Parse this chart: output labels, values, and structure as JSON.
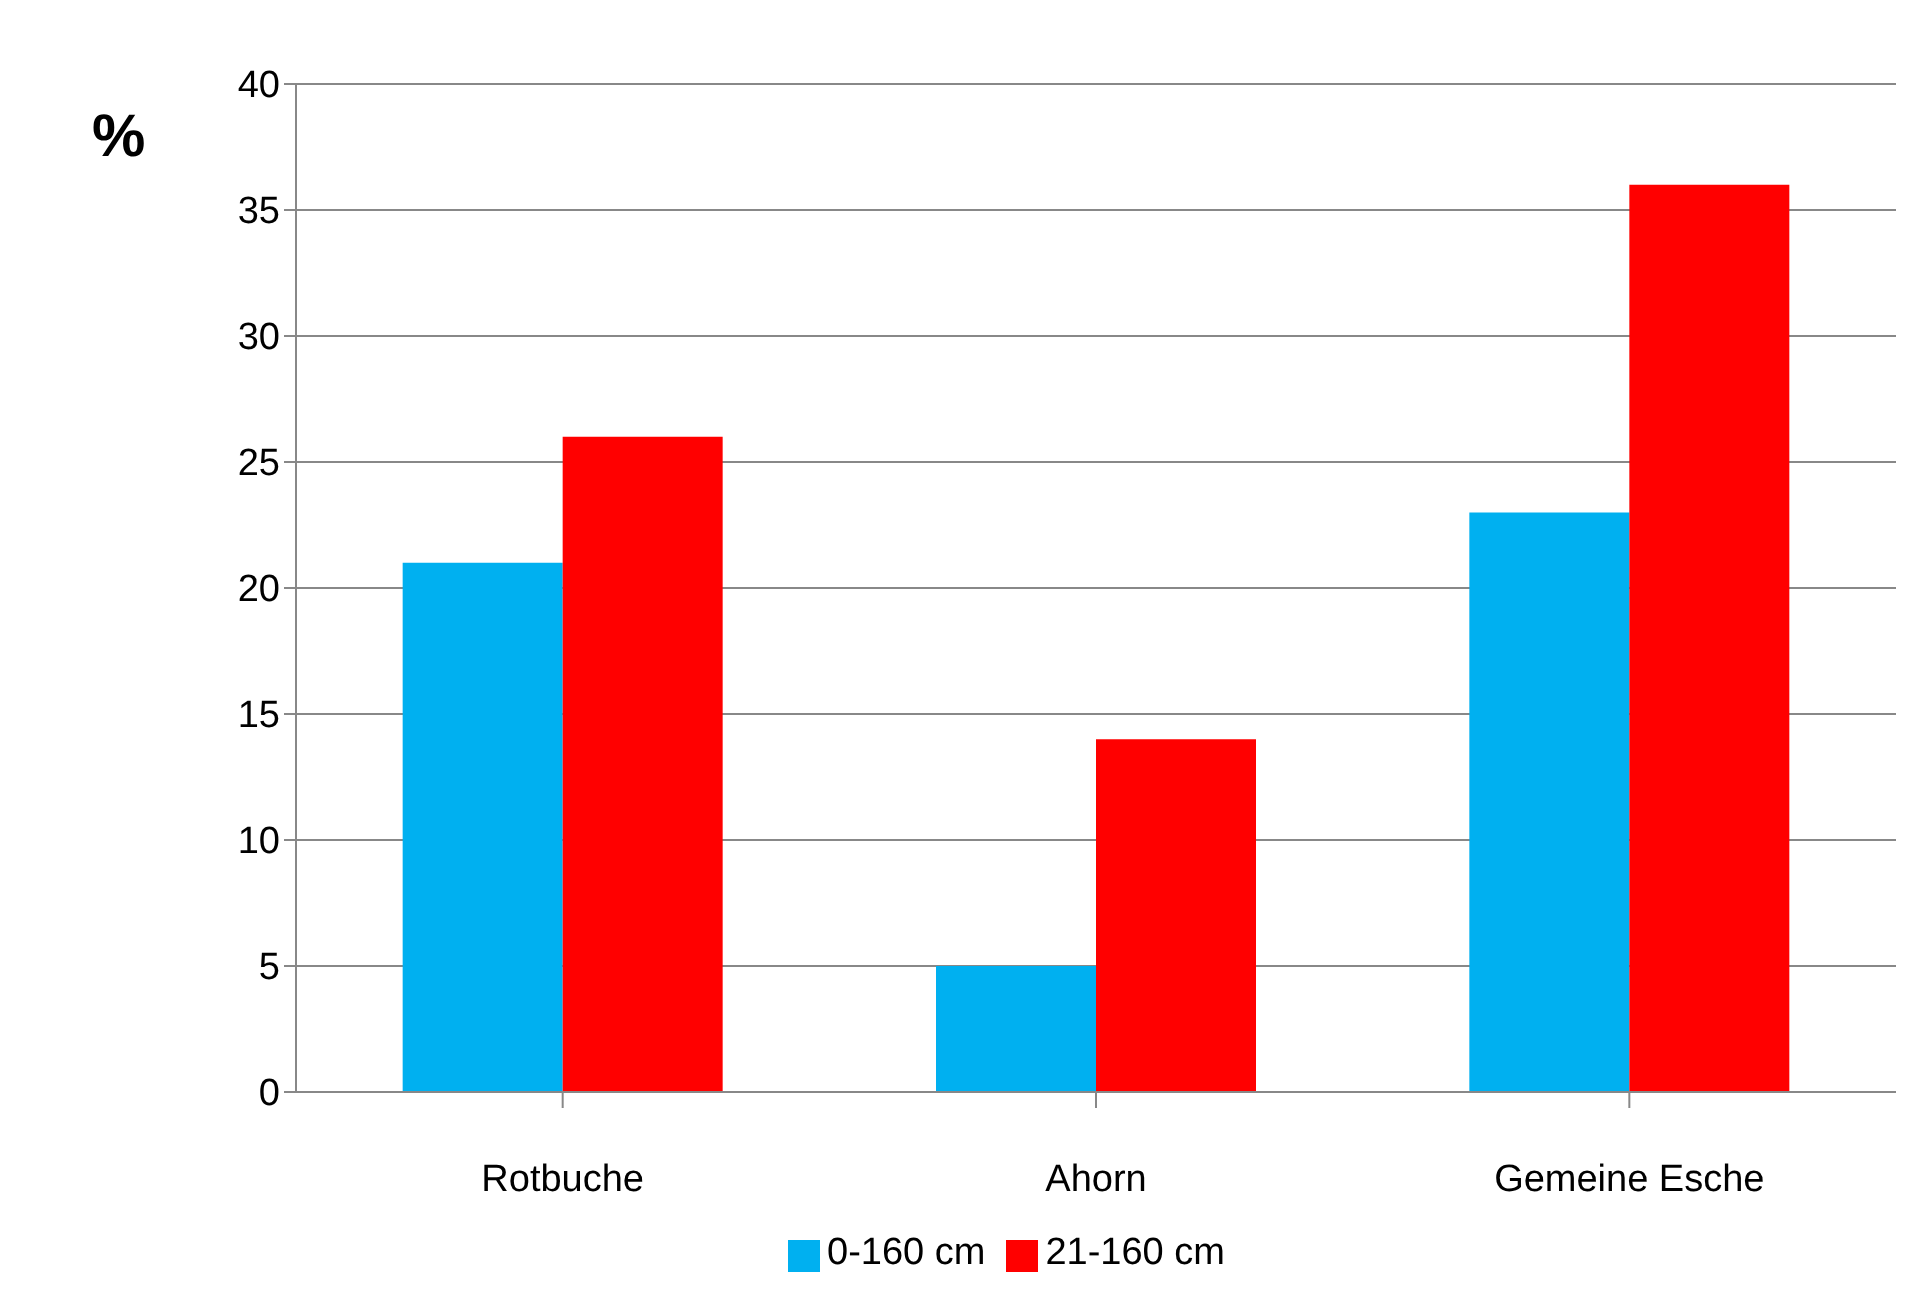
{
  "chart_data": {
    "type": "bar",
    "ylabel": "%",
    "categories": [
      "Rotbuche",
      "Ahorn",
      "Gemeine Esche"
    ],
    "series": [
      {
        "name": "0-160 cm",
        "color": "#00b0f0",
        "values": [
          21,
          5,
          23
        ]
      },
      {
        "name": "21-160 cm",
        "color": "#ff0000",
        "values": [
          26,
          14,
          36
        ]
      }
    ],
    "ylim": [
      0,
      40
    ],
    "yticks": [
      0,
      5,
      10,
      15,
      20,
      25,
      30,
      35,
      40
    ],
    "grid": "y",
    "legend": "bottom"
  }
}
